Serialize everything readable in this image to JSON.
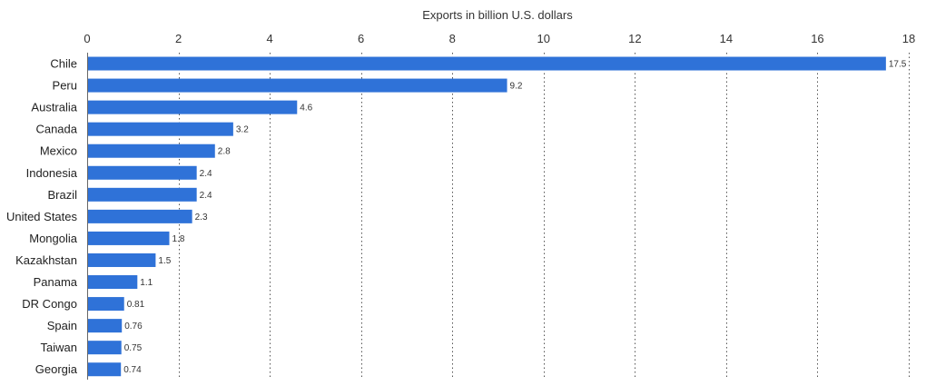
{
  "chart_data": {
    "type": "bar",
    "orientation": "horizontal",
    "title": "",
    "xlabel": "Exports in billion U.S. dollars",
    "ylabel": "",
    "xlim": [
      0,
      18
    ],
    "x_ticks": [
      0,
      2,
      4,
      6,
      8,
      10,
      12,
      14,
      16,
      18
    ],
    "grid": true,
    "categories": [
      "Chile",
      "Peru",
      "Australia",
      "Canada",
      "Mexico",
      "Indonesia",
      "Brazil",
      "United States",
      "Mongolia",
      "Kazakhstan",
      "Panama",
      "DR Congo",
      "Spain",
      "Taiwan",
      "Georgia"
    ],
    "values": [
      17.5,
      9.2,
      4.6,
      3.2,
      2.8,
      2.4,
      2.4,
      2.3,
      1.8,
      1.5,
      1.1,
      0.81,
      0.76,
      0.75,
      0.74
    ],
    "value_labels": [
      "17.5",
      "9.2",
      "4.6",
      "3.2",
      "2.8",
      "2.4",
      "2.4",
      "2.3",
      "1.8",
      "1.5",
      "1.1",
      "0.81",
      "0.76",
      "0.75",
      "0.74"
    ],
    "bar_color": "#2f72d8"
  }
}
